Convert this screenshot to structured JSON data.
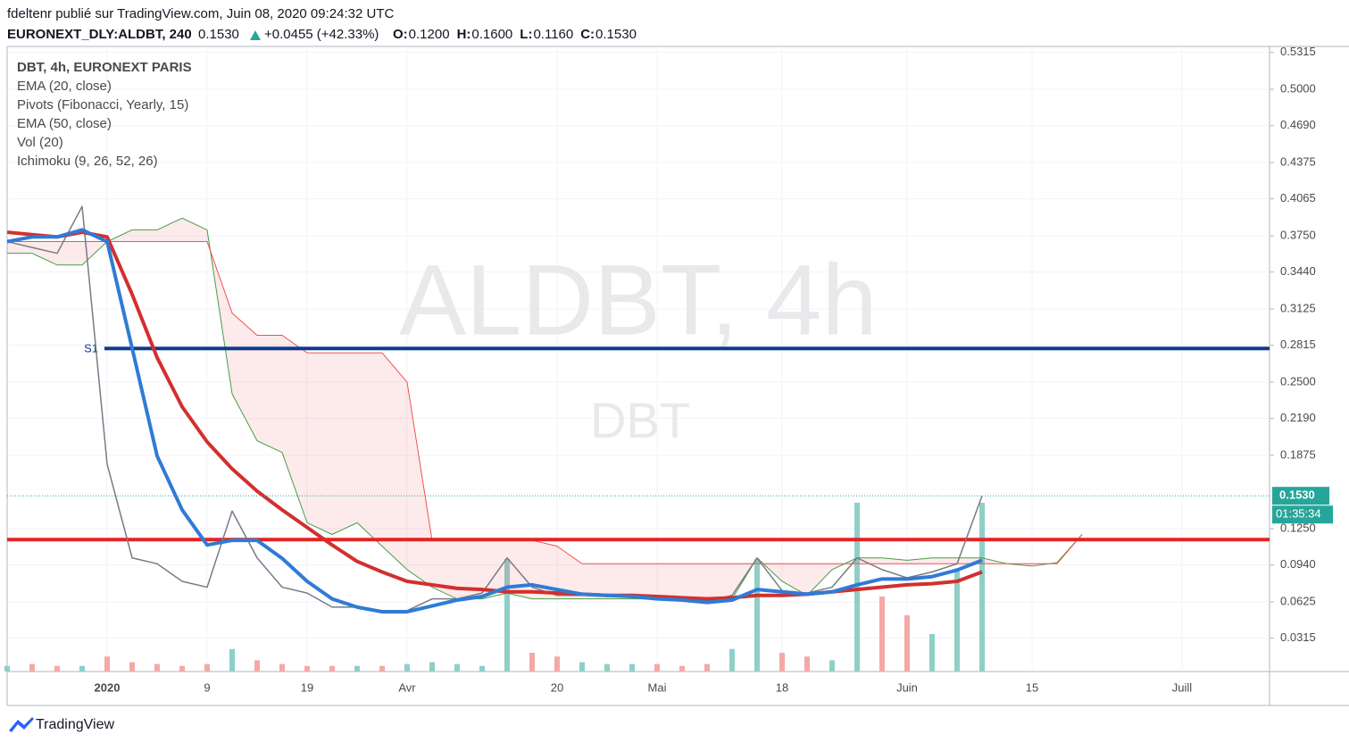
{
  "header": {
    "author_line": "fdeltenr publié sur TradingView.com, Juin 08, 2020 09:24:32 UTC",
    "symbol": "EURONEXT_DLY:ALDBT, 240",
    "last": "0.1530",
    "change": "+0.0455 (+42.33%)",
    "ohlc": [
      {
        "key": "O:",
        "value": "0.1200"
      },
      {
        "key": "H:",
        "value": "0.1600"
      },
      {
        "key": "L:",
        "value": "0.1160"
      },
      {
        "key": "C:",
        "value": "0.1530"
      }
    ]
  },
  "watermark": {
    "main": "ALDBT, 4h",
    "sub": "DBT"
  },
  "footer": {
    "brand": "TradingView"
  },
  "chart_data": {
    "type": "line",
    "categories": [
      null,
      null,
      null,
      null,
      "2020",
      null,
      null,
      null,
      "9",
      null,
      null,
      null,
      "19",
      null,
      null,
      null,
      "Avr",
      null,
      null,
      null,
      null,
      null,
      "20",
      null,
      null,
      null,
      "Mai",
      null,
      null,
      null,
      null,
      "18",
      null,
      null,
      null,
      null,
      "Juin",
      null,
      null,
      null,
      null,
      "15",
      null,
      null,
      null,
      null,
      null,
      "Juill",
      null,
      null,
      null
    ],
    "ylim": [
      0.003,
      0.5366
    ],
    "yticks": [
      {
        "value": 0.5315,
        "label": "0.5315"
      },
      {
        "value": 0.5,
        "label": "0.5000"
      },
      {
        "value": 0.469,
        "label": "0.4690"
      },
      {
        "value": 0.4375,
        "label": "0.4375"
      },
      {
        "value": 0.4065,
        "label": "0.4065"
      },
      {
        "value": 0.375,
        "label": "0.3750"
      },
      {
        "value": 0.344,
        "label": "0.3440"
      },
      {
        "value": 0.3125,
        "label": "0.3125"
      },
      {
        "value": 0.2815,
        "label": "0.2815"
      },
      {
        "value": 0.25,
        "label": "0.2500"
      },
      {
        "value": 0.219,
        "label": "0.2190"
      },
      {
        "value": 0.1875,
        "label": "0.1875"
      },
      {
        "value": 0.125,
        "label": "0.1250"
      },
      {
        "value": 0.094,
        "label": "0.0940"
      },
      {
        "value": 0.0625,
        "label": "0.0625"
      },
      {
        "value": 0.0315,
        "label": "0.0315"
      }
    ],
    "vlim": [
      0,
      100
    ],
    "grid": true,
    "series": [
      {
        "name": "DBT, 4h, EURONEXT PARIS",
        "color": "#787b86",
        "values": [
          0.37,
          0.365,
          0.36,
          0.4,
          0.18,
          0.1,
          0.095,
          0.08,
          0.075,
          0.14,
          0.1,
          0.075,
          0.07,
          0.058,
          0.058,
          0.055,
          0.055,
          0.065,
          0.065,
          0.07,
          0.1,
          0.075,
          0.068,
          0.068,
          0.068,
          0.068,
          0.066,
          0.064,
          0.063,
          0.068,
          0.1,
          0.072,
          0.07,
          0.075,
          0.1,
          0.09,
          0.083,
          0.088,
          0.095,
          0.153,
          null,
          null,
          null,
          null,
          null,
          null,
          null,
          null,
          null,
          null,
          null
        ]
      },
      {
        "name": "EMA (20, close)",
        "color": "#2f7bd6",
        "values": [
          0.37,
          0.374,
          0.374,
          0.38,
          0.37,
          0.279,
          0.187,
          0.141,
          0.111,
          0.115,
          0.115,
          0.0996,
          0.08,
          0.065,
          0.058,
          0.054,
          0.054,
          0.059,
          0.064,
          0.067,
          0.075,
          0.077,
          0.073,
          0.069,
          0.068,
          0.067,
          0.065,
          0.064,
          0.062,
          0.064,
          0.073,
          0.071,
          0.069,
          0.071,
          0.077,
          0.082,
          0.082,
          0.084,
          0.0896,
          0.098,
          null,
          null,
          null,
          null,
          null,
          null,
          null,
          null,
          null,
          null,
          null
        ]
      },
      {
        "name": "EMA (50, close)",
        "color": "#d32f2f",
        "values": [
          0.378,
          0.376,
          0.374,
          0.378,
          0.374,
          0.325,
          0.271,
          0.229,
          0.199,
          0.176,
          0.157,
          0.141,
          0.126,
          0.111,
          0.097,
          0.088,
          0.08,
          0.077,
          0.074,
          0.073,
          0.071,
          0.071,
          0.07,
          0.069,
          0.068,
          0.068,
          0.067,
          0.066,
          0.065,
          0.066,
          0.068,
          0.068,
          0.069,
          0.071,
          0.073,
          0.075,
          0.077,
          0.078,
          0.08,
          0.088,
          null,
          null,
          null,
          null,
          null,
          null,
          null,
          null,
          null,
          null,
          null
        ]
      },
      {
        "name": "Vol (20)",
        "type": "volume",
        "color": "#8fcfc8",
        "values": [
          3,
          4,
          3,
          3,
          8,
          5,
          4,
          3,
          4,
          12,
          6,
          4,
          3,
          3,
          3,
          3,
          4,
          5,
          4,
          3,
          60,
          10,
          8,
          5,
          4,
          4,
          4,
          3,
          4,
          12,
          60,
          10,
          8,
          6,
          90,
          40,
          30,
          20,
          55,
          90,
          null,
          null,
          null,
          null,
          null,
          null,
          null,
          null,
          null,
          null,
          null
        ]
      },
      {
        "name": "Ichimoku (9, 26, 52, 26)",
        "type": "cloud",
        "color": "#43a047",
        "color_b": "#ef5350",
        "values": [
          0.36,
          0.36,
          0.35,
          0.35,
          0.37,
          0.38,
          0.38,
          0.39,
          0.38,
          0.24,
          0.2,
          0.19,
          0.13,
          0.12,
          0.13,
          0.11,
          0.09,
          0.075,
          0.065,
          0.065,
          0.07,
          0.065,
          0.065,
          0.065,
          0.065,
          0.065,
          0.065,
          0.065,
          0.065,
          0.065,
          0.1,
          0.08,
          0.068,
          0.09,
          0.1,
          0.1,
          0.098,
          0.1,
          0.1,
          0.1,
          0.095,
          0.093,
          0.096,
          0.12,
          null,
          null,
          null,
          null,
          null,
          null,
          null
        ],
        "values_b": [
          0.37,
          0.37,
          0.37,
          0.37,
          0.37,
          0.37,
          0.37,
          0.37,
          0.37,
          0.309,
          0.29,
          0.29,
          0.275,
          0.275,
          0.275,
          0.275,
          0.25,
          0.115,
          0.115,
          0.115,
          0.115,
          0.115,
          0.11,
          0.095,
          0.095,
          0.095,
          0.095,
          0.095,
          0.095,
          0.095,
          0.095,
          0.095,
          0.095,
          0.095,
          0.095,
          0.095,
          0.095,
          0.095,
          0.095,
          0.095,
          0.095,
          0.095,
          0.095,
          0.12,
          null,
          null,
          null,
          null,
          null,
          null,
          null
        ]
      }
    ],
    "levels": [
      {
        "name": "Pivots (Fibonacci, Yearly, 15)",
        "label": "S1",
        "value": 0.2788,
        "color": "#0d3b8c"
      },
      {
        "value": 0.1156,
        "color": "#e52222"
      }
    ],
    "price_tag": {
      "value": 0.153,
      "label": "0.1530",
      "countdown": "01:35:34",
      "color": "#26a69a"
    }
  }
}
